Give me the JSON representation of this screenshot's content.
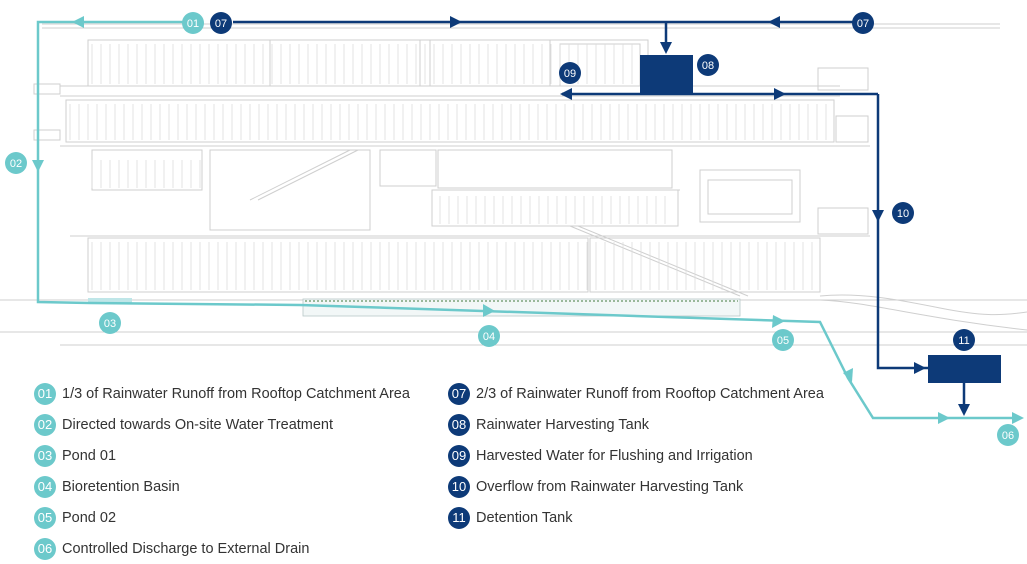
{
  "colors": {
    "teal": "#6cc9cb",
    "navy": "#0d3a78",
    "building_line": "#c8c8c8"
  },
  "markers": {
    "m01": "01",
    "m02": "02",
    "m03": "03",
    "m04": "04",
    "m05": "05",
    "m06": "06",
    "m07a": "07",
    "m07b": "07",
    "m08": "08",
    "m09": "09",
    "m10": "10",
    "m11": "11"
  },
  "legend": {
    "left": [
      {
        "num": "01",
        "text": "1/3 of Rainwater Runoff from Rooftop Catchment Area"
      },
      {
        "num": "02",
        "text": "Directed towards On-site Water Treatment"
      },
      {
        "num": "03",
        "text": "Pond 01"
      },
      {
        "num": "04",
        "text": "Bioretention Basin"
      },
      {
        "num": "05",
        "text": "Pond 02"
      },
      {
        "num": "06",
        "text": "Controlled Discharge to External Drain"
      }
    ],
    "right": [
      {
        "num": "07",
        "text": "2/3 of Rainwater Runoff from Rooftop Catchment Area"
      },
      {
        "num": "08",
        "text": "Rainwater Harvesting Tank"
      },
      {
        "num": "09",
        "text": "Harvested Water for Flushing and Irrigation"
      },
      {
        "num": "10",
        "text": "Overflow from Rainwater Harvesting Tank"
      },
      {
        "num": "11",
        "text": "Detention  Tank"
      }
    ]
  }
}
